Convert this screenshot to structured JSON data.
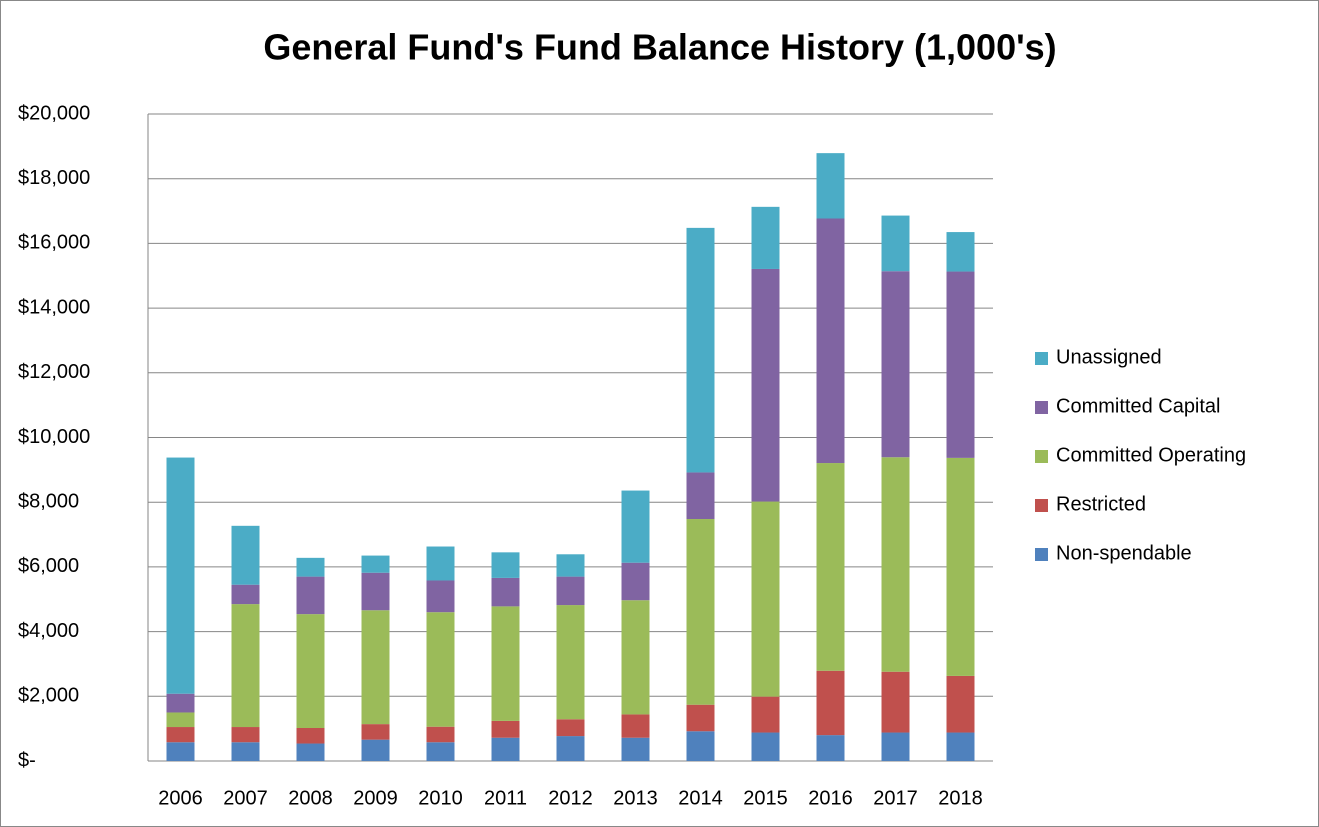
{
  "chart_data": {
    "type": "stacked_bar",
    "title": "General Fund's Fund Balance History (1,000's)",
    "categories": [
      "2006",
      "2007",
      "2008",
      "2009",
      "2010",
      "2011",
      "2012",
      "2013",
      "2014",
      "2015",
      "2016",
      "2017",
      "2018"
    ],
    "series": [
      {
        "name": "Non-spendable",
        "color": "#4f81bd",
        "values": [
          580,
          580,
          540,
          660,
          580,
          720,
          770,
          720,
          920,
          880,
          800,
          880,
          880
        ]
      },
      {
        "name": "Restricted",
        "color": "#c0504d",
        "values": [
          470,
          470,
          480,
          480,
          480,
          520,
          520,
          720,
          820,
          1110,
          1990,
          1880,
          1750
        ]
      },
      {
        "name": "Committed Operating",
        "color": "#9bbb59",
        "values": [
          450,
          3800,
          3520,
          3520,
          3540,
          3540,
          3530,
          3530,
          5740,
          6030,
          6420,
          6630,
          6740
        ]
      },
      {
        "name": "Committed Capital",
        "color": "#8064a2",
        "values": [
          580,
          600,
          1160,
          1160,
          980,
          880,
          880,
          1160,
          1440,
          7190,
          7560,
          5750,
          5760
        ]
      },
      {
        "name": "Unassigned",
        "color": "#4bacc6",
        "values": [
          7300,
          1820,
          580,
          530,
          1050,
          790,
          690,
          2230,
          7560,
          1920,
          2020,
          1720,
          1220
        ]
      }
    ],
    "ylim": [
      0,
      20000
    ],
    "yticks": [
      {
        "value": 0,
        "label": "$-"
      },
      {
        "value": 2000,
        "label": "$2,000"
      },
      {
        "value": 4000,
        "label": "$4,000"
      },
      {
        "value": 6000,
        "label": "$6,000"
      },
      {
        "value": 8000,
        "label": "$8,000"
      },
      {
        "value": 10000,
        "label": "$10,000"
      },
      {
        "value": 12000,
        "label": "$12,000"
      },
      {
        "value": 14000,
        "label": "$14,000"
      },
      {
        "value": 16000,
        "label": "$16,000"
      },
      {
        "value": 18000,
        "label": "$18,000"
      },
      {
        "value": 20000,
        "label": "$20,000"
      }
    ],
    "grid": true,
    "legend": "right"
  }
}
